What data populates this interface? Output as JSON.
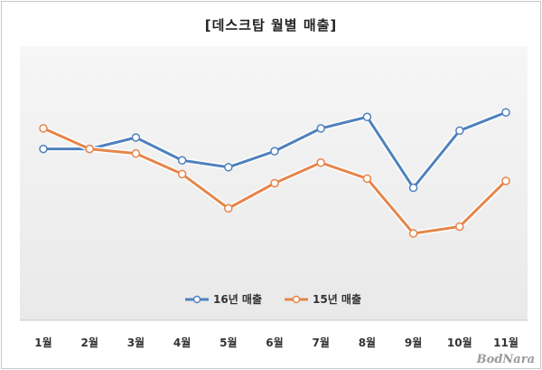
{
  "chart_data": {
    "type": "line",
    "title": "[데스크탑 월별 매출]",
    "categories": [
      "1월",
      "2월",
      "3월",
      "4월",
      "5월",
      "6월",
      "7월",
      "8월",
      "9월",
      "10월",
      "11월"
    ],
    "series": [
      {
        "name": "16년 매출",
        "color": "#4f81bd",
        "values": [
          75,
          75,
          80,
          70,
          67,
          74,
          84,
          89,
          58,
          83,
          91
        ]
      },
      {
        "name": "15년 매출",
        "color": "#e6854a",
        "values": [
          84,
          75,
          73,
          64,
          49,
          60,
          69,
          62,
          38,
          41,
          61
        ]
      }
    ],
    "ylim": [
      0,
      120
    ],
    "grid": false,
    "legend_position": "bottom",
    "xlabel": "",
    "ylabel": ""
  },
  "watermark": "BodNara"
}
